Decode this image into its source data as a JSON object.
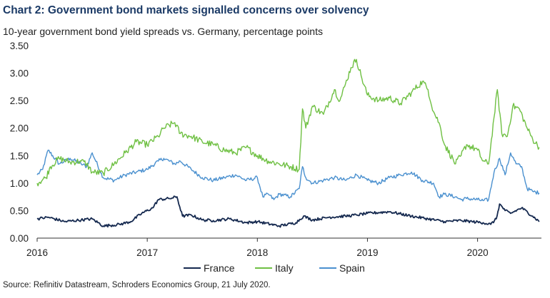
{
  "chart_title": "Chart 2: Government bond markets signalled concerns over solvency",
  "chart_subtitle": "10-year government bond yield spreads vs. Germany, percentage points",
  "source": "Source: Refinitiv Datastream, Schroders Economics Group, 21 July 2020.",
  "colors": {
    "France": "#15294f",
    "Italy": "#6fc043",
    "Spain": "#4a90cf",
    "axis": "#333333"
  },
  "chart_data": {
    "type": "line",
    "title": "Chart 2: Government bond markets signalled concerns over solvency",
    "ylabel": "10-year government bond yield spreads vs. Germany, percentage points",
    "xlabel": "",
    "xlim": [
      2016.0,
      2020.58
    ],
    "ylim": [
      0,
      3.5
    ],
    "grid": false,
    "legend": "bottom",
    "yticks": [
      "0.00",
      "0.50",
      "1.00",
      "1.50",
      "2.00",
      "2.50",
      "3.00",
      "3.50"
    ],
    "ytick_values": [
      0,
      0.5,
      1.0,
      1.5,
      2.0,
      2.5,
      3.0,
      3.5
    ],
    "xticks": [
      "2016",
      "2017",
      "2018",
      "2019",
      "2020"
    ],
    "xtick_values": [
      2016,
      2017,
      2018,
      2019,
      2020
    ],
    "series": [
      {
        "name": "France",
        "x": [
          2016.0,
          2016.1,
          2016.25,
          2016.4,
          2016.5,
          2016.6,
          2016.75,
          2016.85,
          2016.95,
          2017.05,
          2017.1,
          2017.2,
          2017.27,
          2017.32,
          2017.4,
          2017.5,
          2017.6,
          2017.75,
          2017.9,
          2018.0,
          2018.2,
          2018.35,
          2018.42,
          2018.5,
          2018.65,
          2018.8,
          2018.9,
          2019.0,
          2019.2,
          2019.4,
          2019.55,
          2019.7,
          2019.85,
          2019.95,
          2020.05,
          2020.12,
          2020.17,
          2020.2,
          2020.25,
          2020.3,
          2020.4,
          2020.5,
          2020.56
        ],
        "values": [
          0.35,
          0.38,
          0.3,
          0.33,
          0.35,
          0.22,
          0.25,
          0.3,
          0.45,
          0.55,
          0.7,
          0.72,
          0.75,
          0.4,
          0.42,
          0.33,
          0.32,
          0.35,
          0.28,
          0.3,
          0.22,
          0.28,
          0.4,
          0.33,
          0.38,
          0.4,
          0.42,
          0.45,
          0.48,
          0.4,
          0.35,
          0.3,
          0.32,
          0.3,
          0.28,
          0.25,
          0.35,
          0.62,
          0.5,
          0.45,
          0.55,
          0.4,
          0.3
        ]
      },
      {
        "name": "Italy",
        "x": [
          2016.0,
          2016.08,
          2016.12,
          2016.2,
          2016.3,
          2016.4,
          2016.45,
          2016.5,
          2016.6,
          2016.7,
          2016.8,
          2016.9,
          2017.0,
          2017.1,
          2017.15,
          2017.25,
          2017.3,
          2017.4,
          2017.5,
          2017.6,
          2017.7,
          2017.8,
          2017.9,
          2018.0,
          2018.1,
          2018.2,
          2018.3,
          2018.38,
          2018.41,
          2018.44,
          2018.5,
          2018.6,
          2018.7,
          2018.75,
          2018.8,
          2018.85,
          2018.9,
          2018.95,
          2019.0,
          2019.1,
          2019.2,
          2019.3,
          2019.4,
          2019.5,
          2019.55,
          2019.6,
          2019.65,
          2019.7,
          2019.8,
          2019.85,
          2019.9,
          2020.0,
          2020.05,
          2020.1,
          2020.15,
          2020.18,
          2020.22,
          2020.27,
          2020.32,
          2020.38,
          2020.45,
          2020.5,
          2020.56
        ],
        "values": [
          1.0,
          1.1,
          1.3,
          1.45,
          1.38,
          1.4,
          1.35,
          1.2,
          1.18,
          1.35,
          1.55,
          1.75,
          1.7,
          1.85,
          2.0,
          2.1,
          1.9,
          1.85,
          1.75,
          1.7,
          1.6,
          1.55,
          1.65,
          1.5,
          1.4,
          1.35,
          1.3,
          1.25,
          2.35,
          2.0,
          2.4,
          2.25,
          2.7,
          2.5,
          2.8,
          3.1,
          3.25,
          2.9,
          2.6,
          2.5,
          2.55,
          2.45,
          2.65,
          2.85,
          2.7,
          2.3,
          2.1,
          1.7,
          1.35,
          1.5,
          1.7,
          1.6,
          1.4,
          1.35,
          2.2,
          2.7,
          1.9,
          1.85,
          2.4,
          2.35,
          2.0,
          1.8,
          1.65
        ]
      },
      {
        "name": "Spain",
        "x": [
          2016.0,
          2016.05,
          2016.1,
          2016.2,
          2016.3,
          2016.4,
          2016.45,
          2016.5,
          2016.6,
          2016.7,
          2016.8,
          2016.9,
          2017.0,
          2017.1,
          2017.15,
          2017.25,
          2017.3,
          2017.4,
          2017.5,
          2017.6,
          2017.7,
          2017.8,
          2017.9,
          2018.0,
          2018.05,
          2018.1,
          2018.15,
          2018.2,
          2018.3,
          2018.38,
          2018.41,
          2018.44,
          2018.5,
          2018.6,
          2018.7,
          2018.8,
          2018.9,
          2019.0,
          2019.1,
          2019.2,
          2019.3,
          2019.4,
          2019.5,
          2019.6,
          2019.65,
          2019.7,
          2019.8,
          2019.85,
          2019.9,
          2020.0,
          2020.05,
          2020.1,
          2020.15,
          2020.2,
          2020.25,
          2020.3,
          2020.35,
          2020.4,
          2020.45,
          2020.5,
          2020.56
        ],
        "values": [
          1.15,
          1.25,
          1.6,
          1.35,
          1.45,
          1.35,
          1.3,
          1.55,
          1.1,
          1.05,
          1.15,
          1.2,
          1.25,
          1.4,
          1.45,
          1.35,
          1.4,
          1.25,
          1.1,
          1.05,
          1.1,
          1.15,
          1.05,
          1.1,
          0.75,
          0.8,
          0.7,
          0.8,
          0.75,
          0.9,
          1.3,
          1.1,
          1.0,
          1.05,
          1.1,
          1.05,
          1.15,
          1.05,
          1.0,
          1.1,
          1.15,
          1.2,
          1.05,
          1.0,
          0.75,
          0.8,
          0.75,
          0.7,
          0.72,
          0.7,
          0.68,
          0.7,
          1.2,
          1.45,
          1.15,
          1.55,
          1.35,
          1.3,
          0.9,
          0.85,
          0.82
        ]
      }
    ]
  }
}
